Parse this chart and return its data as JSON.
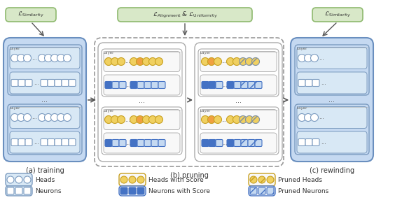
{
  "bg_color": "#ffffff",
  "light_blue": "#c5d9f1",
  "mid_blue": "#4472c4",
  "light_green": "#d8e8c8",
  "mid_green": "#7cb87c",
  "orange": "#f0a040",
  "yellow": "#f0d060",
  "label_a": "(a) training",
  "label_b": "(b) pruning",
  "label_c": "(c) rewinding",
  "loss_sim": "$\\mathcal{L}_{\\mathrm{Similarity}}$",
  "loss_align_unif": "$\\mathcal{L}_{\\mathrm{Alignment}}$ & $\\mathcal{L}_{\\mathrm{Uniformity}}$"
}
